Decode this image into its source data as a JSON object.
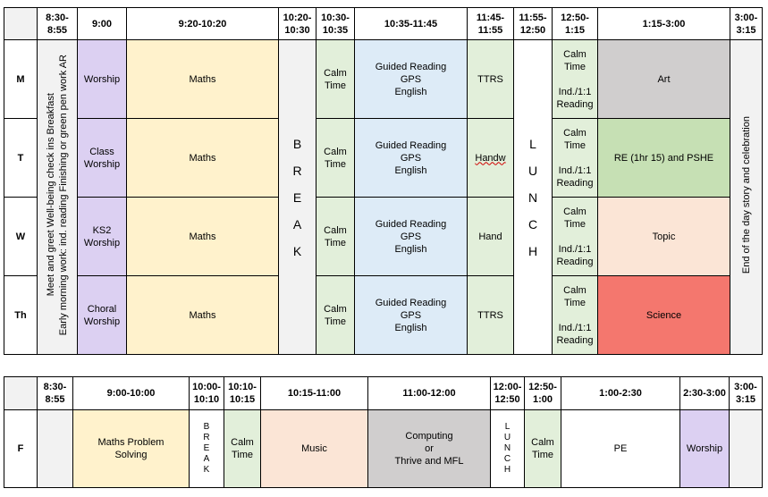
{
  "weekly": {
    "times": [
      "8:30-8:55",
      "9:00",
      "9:20-10:20",
      "10:20-10:30",
      "10:30-10:35",
      "10:35-11:45",
      "11:45-11:55",
      "11:55-12:50",
      "12:50-1:15",
      "1:15-3:00",
      "3:00-3:15"
    ],
    "days": [
      "M",
      "T",
      "W",
      "Th"
    ],
    "early_morning_lines": [
      "Meet and greet      Well-being check ins    Breakfast",
      "Early morning work: ind. reading     Finishing or green pen work     AR"
    ],
    "worship": [
      "Worship",
      "Class Worship",
      "KS2 Worship",
      "Choral Worship"
    ],
    "maths": "Maths",
    "break_letters": [
      "B",
      "R",
      "E",
      "A",
      "K"
    ],
    "calm_time": "Calm Time",
    "guided_reading": [
      "Guided Reading",
      "GPS",
      "English"
    ],
    "ttrs_col": [
      "TTRS",
      "Handw",
      "Hand",
      "TTRS"
    ],
    "lunch_letters": [
      "L",
      "U",
      "N",
      "C",
      "H"
    ],
    "afternoon_calm": [
      "Calm",
      "Time",
      "Ind./1:1",
      "Reading"
    ],
    "afternoon": [
      "Art",
      "RE (1hr 15) and PSHE",
      "Topic",
      "Science"
    ],
    "end_of_day": "End of the day story and celebration"
  },
  "friday": {
    "times": [
      "8:30-8:55",
      "9:00-10:00",
      "10:00-10:10",
      "10:10-10:15",
      "10:15-11:00",
      "11:00-12:00",
      "12:00-12:50",
      "12:50-1:00",
      "1:00-2:30",
      "2:30-3:00",
      "3:00-3:15"
    ],
    "day": "F",
    "maths_problem": "Maths Problem Solving",
    "break_letters": [
      "B",
      "R",
      "E",
      "A",
      "K"
    ],
    "calm_time": "Calm Time",
    "music": "Music",
    "computing": [
      "Computing",
      "or",
      "Thrive and MFL"
    ],
    "lunch_letters": [
      "L",
      "U",
      "N",
      "C",
      "H"
    ],
    "calm_time_2": "Calm Time",
    "pe": "PE",
    "worship": "Worship"
  },
  "colors": {
    "lilac": "#dcd0f2",
    "cream": "#fff2cc",
    "mint": "#e2efda",
    "blue": "#ddebf7",
    "silver": "#d0cece",
    "green": "#c6e0b4",
    "peach": "#fbe5d6",
    "red": "#f4776e",
    "gray": "#f2f2f2"
  }
}
